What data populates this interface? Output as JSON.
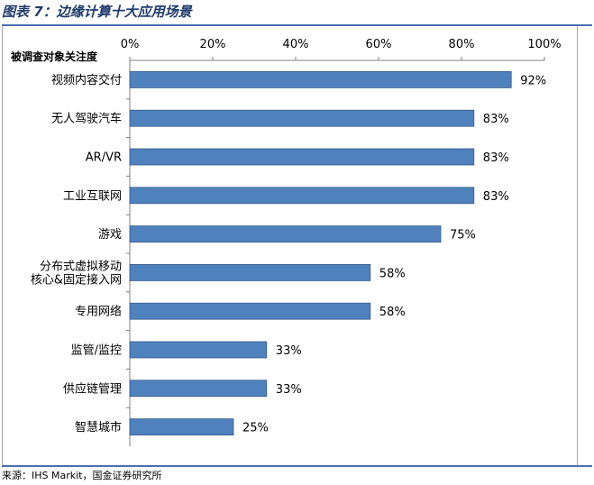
{
  "header": {
    "title": "图表 7：边缘计算十大应用场景"
  },
  "footer": {
    "source": "来源：IHS Markit，国金证券研究所"
  },
  "chart_data": {
    "type": "bar",
    "orientation": "horizontal",
    "title": "",
    "ylabel": "被调查对象关注度",
    "x_axis_position": "top",
    "xlim": [
      0,
      1
    ],
    "x_ticks": [
      "0%",
      "20%",
      "40%",
      "60%",
      "80%",
      "100%"
    ],
    "categories": [
      "视频内容交付",
      "无人驾驶汽车",
      "AR/VR",
      "工业互联网",
      "游戏",
      "分布式虚拟移动核心&固定接入网",
      "专用网络",
      "监管/监控",
      "供应链管理",
      "智慧城市"
    ],
    "category_lines": [
      [
        "视频内容交付"
      ],
      [
        "无人驾驶汽车"
      ],
      [
        "AR/VR"
      ],
      [
        "工业互联网"
      ],
      [
        "游戏"
      ],
      [
        "分布式虚拟移动",
        "核心&固定接入网"
      ],
      [
        "专用网络"
      ],
      [
        "监管/监控"
      ],
      [
        "供应链管理"
      ],
      [
        "智慧城市"
      ]
    ],
    "values": [
      0.92,
      0.83,
      0.83,
      0.83,
      0.75,
      0.58,
      0.58,
      0.33,
      0.33,
      0.25
    ],
    "data_labels": [
      "92%",
      "83%",
      "83%",
      "83%",
      "75%",
      "58%",
      "58%",
      "33%",
      "33%",
      "25%"
    ],
    "grid": false,
    "legend": "none",
    "bar_color": "#4f81bd",
    "bar_edge_color": "#385d8a"
  }
}
